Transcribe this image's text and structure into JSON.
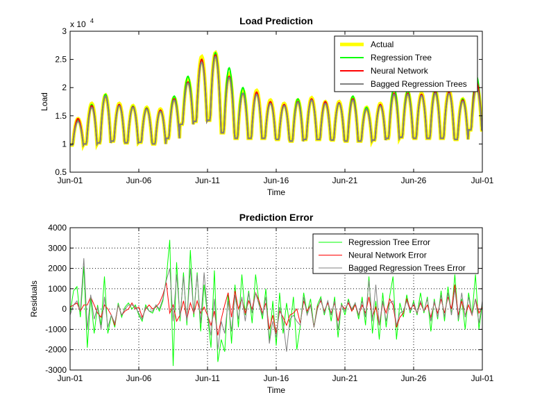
{
  "chart_data": [
    {
      "type": "line",
      "title": "Load Prediction",
      "xlabel": "Time",
      "ylabel": "Load",
      "y_multiplier": "x 10^4",
      "y_multiplier_base": "x 10",
      "y_multiplier_exp": "4",
      "ylim": [
        0.5,
        3
      ],
      "yticks": [
        "0.5",
        "1",
        "1.5",
        "2",
        "2.5",
        "3"
      ],
      "xticks": [
        "Jun-01",
        "Jun-06",
        "Jun-11",
        "Jun-16",
        "Jun-21",
        "Jun-26",
        "Jul-01"
      ],
      "xlim_days": [
        0,
        30
      ],
      "grid": false,
      "legend_placement": "top-right",
      "daily_troughs": [
        0.98,
        1.0,
        1.02,
        1.05,
        1.02,
        1.03,
        1.0,
        1.1,
        1.35,
        1.4,
        1.42,
        1.2,
        1.1,
        1.1,
        1.1,
        1.08,
        1.05,
        1.08,
        1.08,
        1.07,
        1.05,
        1.05,
        1.07,
        1.1,
        1.12,
        1.1,
        1.1,
        1.1,
        1.08,
        1.25
      ],
      "series": [
        {
          "name": "Actual",
          "color": "#ffff00",
          "peaks": [
            1.45,
            1.72,
            1.87,
            1.72,
            1.68,
            1.65,
            1.62,
            1.82,
            2.15,
            2.55,
            2.62,
            2.25,
            1.95,
            1.95,
            1.78,
            1.72,
            1.78,
            1.82,
            1.75,
            1.75,
            1.82,
            1.65,
            1.72,
            1.92,
            1.92,
            1.9,
            1.95,
            1.95,
            1.8,
            2.05
          ]
        },
        {
          "name": "Regression Tree",
          "color": "#00ff00",
          "peaks": [
            1.42,
            1.7,
            1.88,
            1.7,
            1.67,
            1.64,
            1.6,
            1.85,
            2.2,
            2.5,
            2.62,
            2.35,
            2.0,
            1.9,
            1.75,
            1.7,
            1.8,
            1.8,
            1.75,
            1.73,
            1.85,
            1.65,
            1.7,
            2.0,
            1.95,
            1.88,
            1.95,
            1.92,
            1.8,
            2.2
          ]
        },
        {
          "name": "Neural Network",
          "color": "#ff0000",
          "peaks": [
            1.45,
            1.68,
            1.85,
            1.7,
            1.66,
            1.63,
            1.6,
            1.8,
            2.1,
            2.5,
            2.58,
            2.2,
            1.9,
            1.92,
            1.75,
            1.7,
            1.75,
            1.8,
            1.75,
            1.73,
            1.8,
            1.62,
            1.7,
            1.9,
            1.9,
            1.88,
            1.92,
            1.92,
            1.78,
            2.1
          ]
        },
        {
          "name": "Bagged Regression Trees",
          "color": "#808080",
          "peaks": [
            1.4,
            1.65,
            1.85,
            1.68,
            1.65,
            1.62,
            1.58,
            1.78,
            2.08,
            2.45,
            2.55,
            2.18,
            1.9,
            1.88,
            1.72,
            1.68,
            1.74,
            1.78,
            1.72,
            1.72,
            1.78,
            1.62,
            1.68,
            1.88,
            1.88,
            1.86,
            1.9,
            1.9,
            1.76,
            2.0
          ]
        }
      ]
    },
    {
      "type": "line",
      "title": "Prediction Error",
      "xlabel": "Time",
      "ylabel": "Residuals",
      "ylim": [
        -3000,
        4000
      ],
      "yticks": [
        "-3000",
        "-2000",
        "-1000",
        "0",
        "1000",
        "2000",
        "3000",
        "4000"
      ],
      "xticks": [
        "Jun-01",
        "Jun-06",
        "Jun-11",
        "Jun-16",
        "Jun-21",
        "Jun-26",
        "Jul-01"
      ],
      "xlim_days": [
        0,
        30
      ],
      "grid": true,
      "legend_placement": "top-right",
      "sample_step_days": 0.25,
      "series": [
        {
          "name": "Regression Tree Error",
          "color": "#00ff00",
          "values": [
            -200,
            900,
            1100,
            -400,
            2100,
            -1900,
            600,
            -1200,
            200,
            -800,
            1600,
            -1200,
            -300,
            -900,
            300,
            -400,
            100,
            300,
            0,
            200,
            -300,
            -600,
            200,
            -100,
            -200,
            200,
            -100,
            400,
            1500,
            3400,
            -2800,
            2300,
            -600,
            1800,
            -800,
            2900,
            -400,
            1800,
            -1100,
            1200,
            -300,
            -1900,
            1900,
            -2600,
            -1500,
            -2100,
            800,
            -1700,
            1200,
            -900,
            1700,
            -300,
            900,
            -700,
            1700,
            300,
            -500,
            1000,
            -1600,
            400,
            -1800,
            800,
            -1200,
            300,
            -900,
            600,
            -2000,
            -800,
            800,
            -200,
            500,
            -900,
            200,
            600,
            -300,
            400,
            -600,
            600,
            -1400,
            300,
            -300,
            500,
            -100,
            300,
            -500,
            600,
            -800,
            1600,
            -1200,
            400,
            -1500,
            800,
            -900,
            600,
            1600,
            -1500,
            300,
            -400,
            700,
            -200,
            400,
            -300,
            800,
            -200,
            600,
            -1100,
            500,
            -500,
            900,
            -600,
            1100,
            -300,
            1700,
            -600,
            500,
            -1000,
            800,
            -300,
            1700,
            -1000,
            300,
            -1600
          ]
        },
        {
          "name": "Neural Network Error",
          "color": "#ff0000",
          "values": [
            100,
            200,
            300,
            -100,
            200,
            200,
            600,
            200,
            -200,
            -400,
            200,
            0,
            -300,
            -800,
            200,
            -300,
            -100,
            0,
            300,
            0,
            100,
            -400,
            0,
            200,
            0,
            100,
            300,
            700,
            1300,
            -200,
            200,
            -600,
            -300,
            400,
            -500,
            300,
            -200,
            400,
            -200,
            100,
            -300,
            -800,
            -100,
            -1300,
            -500,
            200,
            800,
            -400,
            900,
            0,
            500,
            -200,
            400,
            0,
            800,
            400,
            -200,
            300,
            -1000,
            -300,
            -1200,
            -100,
            -400,
            -800,
            -300,
            -200,
            0,
            -700,
            400,
            -100,
            200,
            -900,
            100,
            400,
            -100,
            300,
            -200,
            300,
            -600,
            200,
            0,
            300,
            -100,
            200,
            -300,
            200,
            -200,
            600,
            -400,
            100,
            -800,
            300,
            -200,
            500,
            200,
            -900,
            -400,
            -200,
            500,
            0,
            200,
            -200,
            300,
            -100,
            200,
            -400,
            300,
            -200,
            500,
            -200,
            600,
            0,
            1200,
            -300,
            400,
            -300,
            200,
            -300,
            500,
            -200,
            100,
            -300
          ]
        },
        {
          "name": "Bagged Regression Trees Error",
          "color": "#808080",
          "values": [
            -300,
            200,
            400,
            -100,
            2500,
            -1000,
            700,
            -500,
            100,
            -1000,
            600,
            -900,
            -300,
            -700,
            200,
            -300,
            0,
            200,
            200,
            100,
            -200,
            -500,
            100,
            -100,
            -100,
            200,
            0,
            500,
            1400,
            2000,
            -600,
            1700,
            -400,
            1600,
            -600,
            2000,
            -200,
            1700,
            -700,
            1800,
            -200,
            -1300,
            500,
            -2000,
            -600,
            -1200,
            400,
            -1100,
            700,
            -500,
            600,
            -600,
            800,
            -200,
            800,
            200,
            -300,
            600,
            -1700,
            -600,
            -1400,
            100,
            -600,
            -2100,
            -500,
            -300,
            -600,
            -800,
            600,
            -300,
            200,
            -900,
            0,
            500,
            -200,
            400,
            -300,
            400,
            -1000,
            200,
            -100,
            400,
            0,
            300,
            -300,
            400,
            -400,
            1400,
            -600,
            1200,
            -800,
            400,
            -600,
            300,
            400,
            -800,
            -200,
            -100,
            400,
            -100,
            300,
            -200,
            400,
            -100,
            500,
            -600,
            400,
            -400,
            700,
            -400,
            800,
            -300,
            1000,
            -500,
            800,
            -400,
            600,
            -300,
            500,
            -700,
            400,
            -1200
          ]
        }
      ]
    }
  ]
}
